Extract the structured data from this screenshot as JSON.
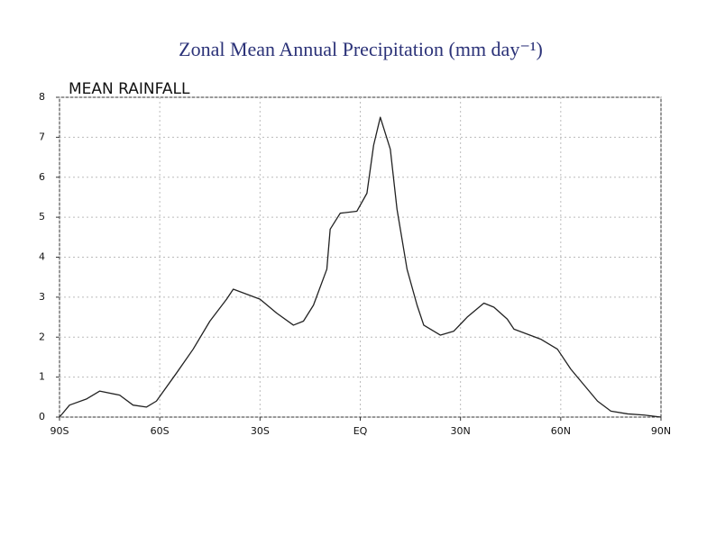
{
  "chart_data": {
    "type": "line",
    "title": "Zonal Mean Annual Precipitation (mm day⁻¹)",
    "subtitle": "MEAN RAINFALL",
    "x": [
      -90,
      -87,
      -82,
      -78,
      -72,
      -68,
      -64,
      -61,
      -55,
      -50,
      -45,
      -40,
      -38,
      -30,
      -25,
      -20,
      -17,
      -14,
      -10,
      -9,
      -6,
      -1,
      2,
      4,
      6,
      9,
      11,
      14,
      17,
      19,
      24,
      28,
      32,
      37,
      40,
      44,
      46,
      54,
      59,
      63,
      67,
      71,
      75,
      80,
      85,
      90
    ],
    "series": [
      {
        "name": "MEAN RAINFALL",
        "color": "#222222",
        "values": [
          0,
          0.3,
          0.45,
          0.65,
          0.55,
          0.3,
          0.25,
          0.4,
          1.1,
          1.7,
          2.4,
          2.95,
          3.2,
          2.95,
          2.6,
          2.3,
          2.4,
          2.8,
          3.7,
          4.7,
          5.1,
          5.15,
          5.6,
          6.8,
          7.5,
          6.7,
          5.2,
          3.7,
          2.8,
          2.3,
          2.05,
          2.15,
          2.5,
          2.85,
          2.75,
          2.45,
          2.2,
          1.95,
          1.7,
          1.2,
          0.8,
          0.4,
          0.15,
          0.08,
          0.05,
          0
        ]
      }
    ],
    "xlim": [
      -90,
      90
    ],
    "xticks": [
      {
        "value": -90,
        "label": "90S"
      },
      {
        "value": -60,
        "label": "60S"
      },
      {
        "value": -30,
        "label": "30S"
      },
      {
        "value": 0,
        "label": "EQ"
      },
      {
        "value": 30,
        "label": "30N"
      },
      {
        "value": 60,
        "label": "60N"
      },
      {
        "value": 90,
        "label": "90N"
      }
    ],
    "ylim": [
      0,
      8
    ],
    "yticks": [
      0,
      1,
      2,
      3,
      4,
      5,
      6,
      7,
      8
    ],
    "grid": true
  }
}
